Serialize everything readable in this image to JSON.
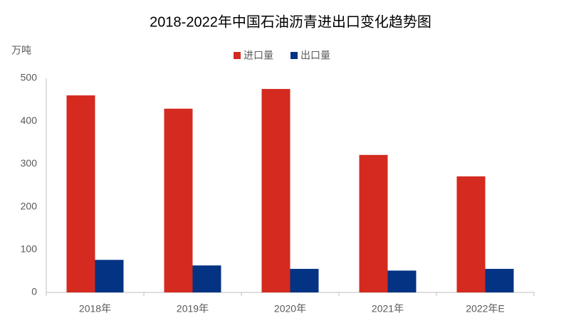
{
  "chart_data": {
    "type": "bar",
    "title": "2018-2022年中国石油沥青进出口变化趋势图",
    "y_label": "万吨",
    "categories": [
      "2018年",
      "2019年",
      "2020年",
      "2021年",
      "2022年E"
    ],
    "series": [
      {
        "name": "进口量",
        "color": "#d42a1f",
        "values": [
          460,
          429,
          475,
          321,
          271
        ]
      },
      {
        "name": "出口量",
        "color": "#043383",
        "values": [
          76,
          63,
          55,
          51,
          55
        ]
      }
    ],
    "ylim": [
      0,
      500
    ],
    "yticks": [
      0,
      100,
      200,
      300,
      400,
      500
    ],
    "grid": false,
    "legend": "top"
  }
}
